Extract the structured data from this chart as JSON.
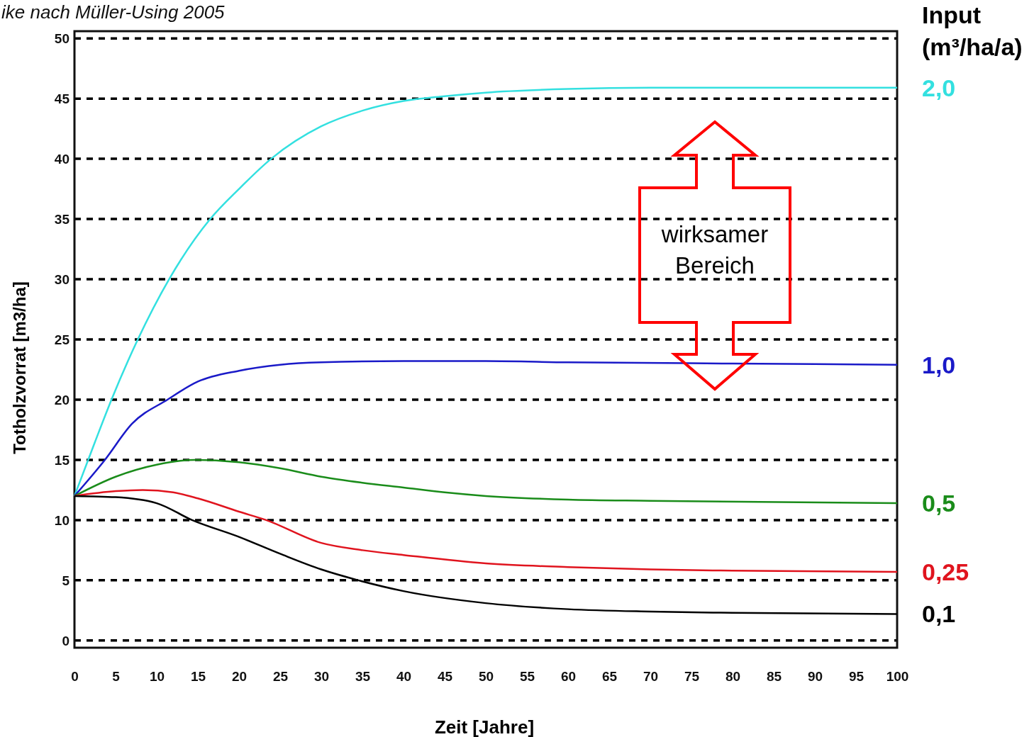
{
  "chart_data": {
    "type": "line",
    "xlabel": "Zeit [Jahre]",
    "ylabel": "Totholzvorrat [m3/ha]",
    "legend_title": "Input (m³/ha/a)",
    "legend": "right",
    "grid": "y",
    "line_style": "solid",
    "xlim": [
      0,
      100
    ],
    "xticks": [
      0,
      5,
      10,
      15,
      20,
      25,
      30,
      35,
      40,
      45,
      50,
      55,
      60,
      65,
      70,
      75,
      80,
      85,
      90,
      95,
      100
    ],
    "ylim": [
      -0.6,
      50.6
    ],
    "yticks": [
      0,
      5,
      10,
      15,
      20,
      25,
      30,
      35,
      40,
      45,
      50
    ],
    "annotations": [
      "ike nach Müller-Using 2005",
      "wirksamer Bereich"
    ],
    "series": [
      {
        "name": "2,0",
        "color": "#33e0e0",
        "x": [
          0,
          2.5,
          4.5,
          7.7,
          11.5,
          16.5,
          20,
          23.9,
          30,
          35,
          40,
          45,
          50,
          60,
          70,
          100
        ],
        "values": [
          12,
          16.5,
          20,
          25,
          30,
          35,
          37.5,
          40,
          42.7,
          44,
          44.8,
          45.2,
          45.5,
          45.8,
          45.9,
          45.9
        ]
      },
      {
        "name": "1,0",
        "color": "#1a1ac8",
        "x": [
          0,
          3.7,
          7,
          11.3,
          15,
          20,
          25,
          30,
          40,
          50,
          60,
          80,
          100
        ],
        "values": [
          12,
          15,
          18,
          20,
          21.5,
          22.4,
          22.9,
          23.1,
          23.2,
          23.2,
          23.1,
          23,
          22.9
        ]
      },
      {
        "name": "0,5",
        "color": "#1a8c1a",
        "x": [
          0,
          5,
          10,
          14.6,
          20,
          25,
          30,
          35,
          40,
          45,
          50,
          60,
          70,
          100
        ],
        "values": [
          12,
          13.6,
          14.6,
          15,
          14.8,
          14.3,
          13.6,
          13.1,
          12.7,
          12.3,
          12,
          11.7,
          11.6,
          11.4
        ]
      },
      {
        "name": "0,25",
        "color": "#e0141e",
        "x": [
          0,
          5,
          8.3,
          12,
          15,
          20,
          23.3,
          30,
          35,
          40,
          50,
          60,
          70,
          80,
          100
        ],
        "values": [
          12,
          12.4,
          12.5,
          12.3,
          11.8,
          10.7,
          10,
          8.1,
          7.5,
          7.1,
          6.4,
          6.1,
          5.9,
          5.8,
          5.7
        ]
      },
      {
        "name": "0,1",
        "color": "#000000",
        "x": [
          0,
          5,
          10,
          14.3,
          20,
          25,
          30,
          34.5,
          40,
          50,
          60,
          70,
          80,
          100
        ],
        "values": [
          12,
          11.9,
          11.4,
          10,
          8.6,
          7.2,
          5.9,
          5,
          4.1,
          3.1,
          2.6,
          2.4,
          2.3,
          2.2
        ]
      }
    ]
  }
}
